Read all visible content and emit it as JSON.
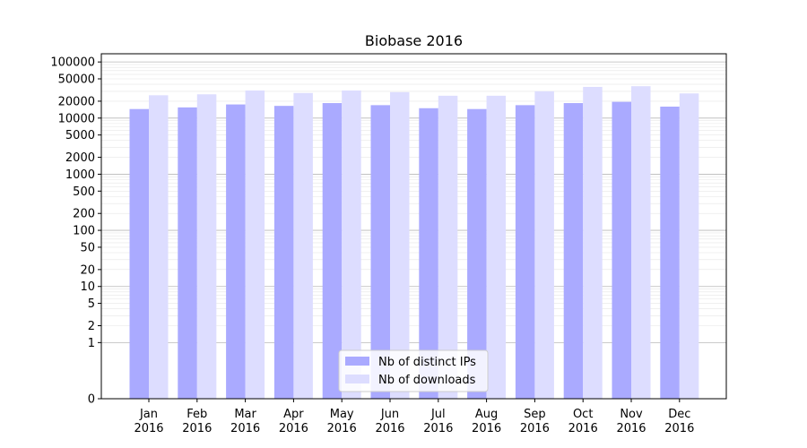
{
  "chart_data": {
    "type": "bar",
    "title": "Biobase 2016",
    "xlabel": "",
    "ylabel": "",
    "yscale": "symlog",
    "ylim": [
      0,
      140000
    ],
    "yticks": [
      0,
      1,
      2,
      5,
      10,
      20,
      50,
      100,
      200,
      500,
      1000,
      2000,
      5000,
      10000,
      20000,
      50000,
      100000
    ],
    "ytick_labels": [
      "0",
      "1",
      "2",
      "5",
      "10",
      "20",
      "50",
      "100",
      "200",
      "500",
      "1000",
      "2000",
      "5000",
      "10000",
      "20000",
      "50000",
      "100000"
    ],
    "grid": true,
    "legend_position": "bottom-center",
    "categories": [
      [
        "Jan",
        "2016"
      ],
      [
        "Feb",
        "2016"
      ],
      [
        "Mar",
        "2016"
      ],
      [
        "Apr",
        "2016"
      ],
      [
        "May",
        "2016"
      ],
      [
        "Jun",
        "2016"
      ],
      [
        "Jul",
        "2016"
      ],
      [
        "Aug",
        "2016"
      ],
      [
        "Sep",
        "2016"
      ],
      [
        "Oct",
        "2016"
      ],
      [
        "Nov",
        "2016"
      ],
      [
        "Dec",
        "2016"
      ]
    ],
    "series": [
      {
        "name": "Nb of distinct IPs",
        "color": "#aaaaff",
        "values": [
          14500,
          15500,
          17500,
          16500,
          18500,
          17000,
          15000,
          14500,
          17000,
          18500,
          19500,
          16000
        ]
      },
      {
        "name": "Nb of downloads",
        "color": "#ddddff",
        "values": [
          25500,
          26500,
          31000,
          28000,
          31000,
          29000,
          25000,
          25000,
          30000,
          36000,
          37000,
          27500
        ]
      }
    ]
  }
}
